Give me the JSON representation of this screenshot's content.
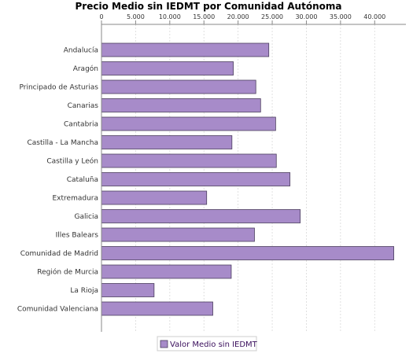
{
  "chart_data": {
    "type": "bar",
    "orientation": "horizontal",
    "title": "Precio Medio sin IEDMT por Comunidad Autónoma",
    "categories": [
      "Andalucía",
      "Aragón",
      "Principado de Asturias",
      "Canarias",
      "Cantabria",
      "Castilla - La Mancha",
      "Castilla y León",
      "Cataluña",
      "Extremadura",
      "Galicia",
      "Illes Balears",
      "Comunidad de Madrid",
      "Región de Murcia",
      "La Rioja",
      "Comunidad Valenciana"
    ],
    "series": [
      {
        "name": "Valor Medio sin IEDMT",
        "values": [
          24500,
          19300,
          22600,
          23300,
          25500,
          19100,
          25600,
          27600,
          15400,
          29100,
          22400,
          42800,
          19000,
          7700,
          16300
        ]
      }
    ],
    "x_ticks": [
      "0",
      "5.000",
      "10.000",
      "15.000",
      "20.000",
      "25.000",
      "30.000",
      "35.000",
      "40.000"
    ],
    "xlim": [
      0,
      44000
    ],
    "grid": true,
    "legend_position": "bottom",
    "bar_color": "#a78bc9",
    "bar_edge_color": "#4b3e5e"
  }
}
